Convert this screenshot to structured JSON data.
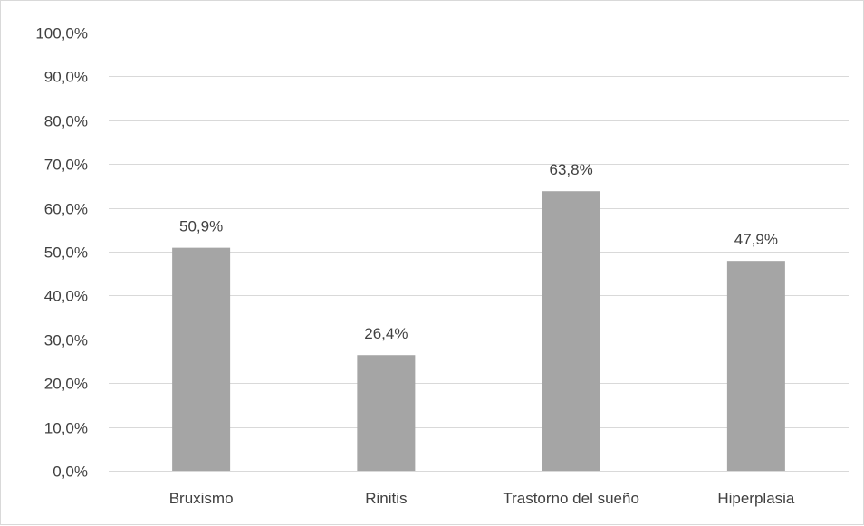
{
  "colors": {
    "bar": "#a5a5a5",
    "gridline": "#d9d9d9",
    "text": "#404040",
    "frame": "#d9d9d9"
  },
  "chart_data": {
    "type": "bar",
    "title": "",
    "xlabel": "",
    "ylabel": "",
    "categories": [
      "Bruxismo",
      "Rinitis",
      "Trastorno del sueño",
      "Hiperplasia"
    ],
    "values": [
      50.9,
      26.4,
      63.8,
      47.9
    ],
    "data_labels": [
      "50,9%",
      "26,4%",
      "63,8%",
      "47,9%"
    ],
    "ylim": [
      0,
      100
    ],
    "y_ticks": [
      0,
      10,
      20,
      30,
      40,
      50,
      60,
      70,
      80,
      90,
      100
    ],
    "y_tick_labels": [
      "0,0%",
      "10,0%",
      "20,0%",
      "30,0%",
      "40,0%",
      "50,0%",
      "60,0%",
      "70,0%",
      "80,0%",
      "90,0%",
      "100,0%"
    ],
    "grid": true,
    "legend": "none"
  }
}
